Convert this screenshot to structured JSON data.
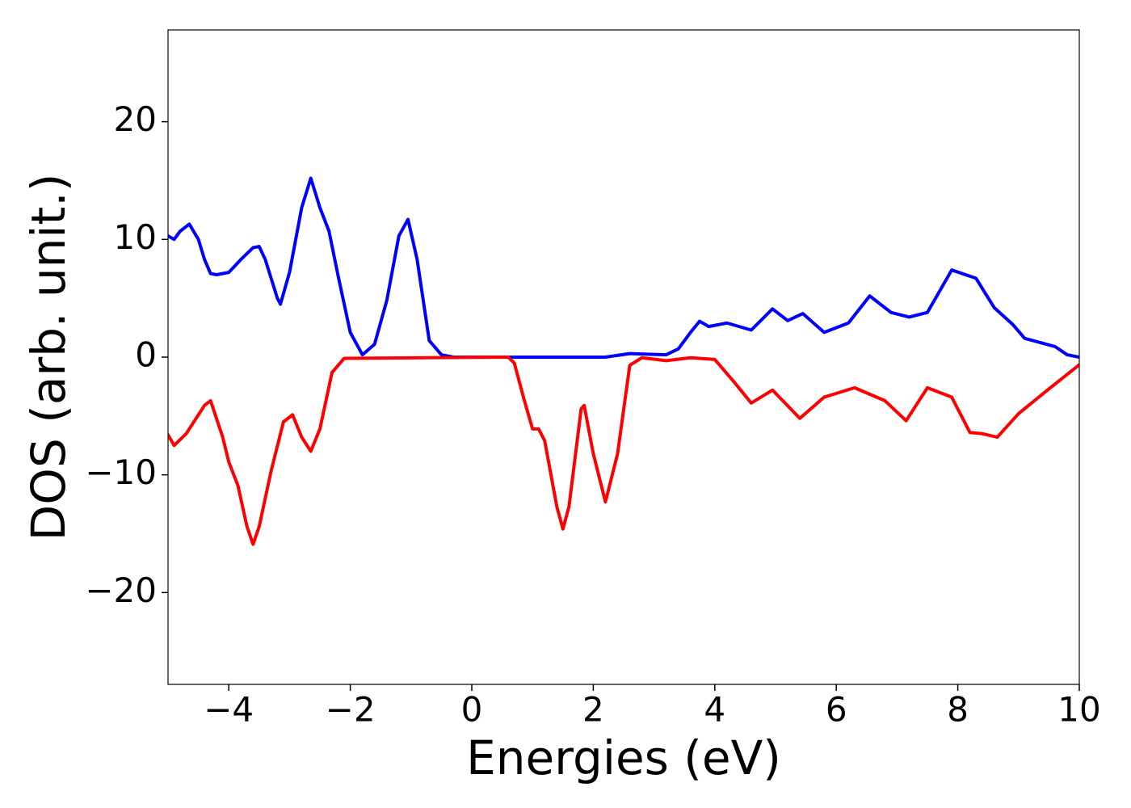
{
  "chart_data": {
    "type": "line",
    "xlabel": "Energies (eV)",
    "ylabel": "DOS (arb. unit.)",
    "xlim": [
      -5,
      10
    ],
    "ylim": [
      -27.8,
      27.8
    ],
    "xticks": [
      {
        "value": -4,
        "label": "−4"
      },
      {
        "value": -2,
        "label": "−2"
      },
      0,
      2,
      4,
      6,
      8,
      10
    ],
    "yticks": [
      {
        "value": -20,
        "label": "−20"
      },
      {
        "value": -10,
        "label": "−10"
      },
      0,
      10,
      20
    ],
    "grid": false,
    "series": [
      {
        "color": "#0000ff",
        "x": [
          -5,
          -4.9,
          -4.8,
          -4.65,
          -4.5,
          -4.4,
          -4.3,
          -4.2,
          -4.0,
          -3.8,
          -3.6,
          -3.5,
          -3.4,
          -3.2,
          -3.15,
          -3.0,
          -2.8,
          -2.65,
          -2.5,
          -2.35,
          -2.2,
          -2.0,
          -1.8,
          -1.6,
          -1.4,
          -1.2,
          -1.05,
          -0.9,
          -0.7,
          -0.5,
          -0.3,
          2.2,
          2.6,
          3.2,
          3.4,
          3.6,
          3.75,
          3.9,
          4.2,
          4.6,
          4.95,
          5.2,
          5.45,
          5.8,
          6.2,
          6.55,
          6.9,
          7.2,
          7.5,
          7.9,
          8.3,
          8.6,
          8.9,
          9.1,
          9.6,
          9.8,
          10
        ],
        "values": [
          10.3,
          10.0,
          10.7,
          11.3,
          10.0,
          8.3,
          7.1,
          7.0,
          7.2,
          8.3,
          9.3,
          9.4,
          8.3,
          5.0,
          4.5,
          7.2,
          12.7,
          15.2,
          12.7,
          10.7,
          6.9,
          2.1,
          0.2,
          1.1,
          4.8,
          10.3,
          11.7,
          8.3,
          1.4,
          0.2,
          0,
          0,
          0.3,
          0.2,
          0.7,
          2.1,
          3.05,
          2.6,
          2.9,
          2.3,
          4.1,
          3.1,
          3.7,
          2.1,
          2.9,
          5.2,
          3.8,
          3.4,
          3.8,
          7.4,
          6.7,
          4.2,
          2.8,
          1.6,
          0.9,
          0.2,
          0
        ]
      },
      {
        "color": "#ff0000",
        "x": [
          -5,
          -4.9,
          -4.7,
          -4.4,
          -4.3,
          -4.1,
          -4.0,
          -3.85,
          -3.7,
          -3.6,
          -3.5,
          -3.3,
          -3.1,
          -2.95,
          -2.8,
          -2.65,
          -2.5,
          -2.3,
          -2.1,
          0.6,
          0.7,
          0.85,
          1.0,
          1.1,
          1.2,
          1.4,
          1.5,
          1.6,
          1.8,
          1.85,
          2.0,
          2.2,
          2.4,
          2.6,
          2.8,
          3.2,
          3.6,
          4.0,
          4.3,
          4.6,
          4.95,
          5.4,
          5.8,
          6.3,
          6.8,
          7.15,
          7.5,
          7.9,
          8.2,
          8.4,
          8.65,
          9.0,
          9.5,
          10
        ],
        "values": [
          -6.6,
          -7.5,
          -6.5,
          -4.1,
          -3.7,
          -6.8,
          -8.9,
          -10.9,
          -14.4,
          -15.9,
          -14.4,
          -9.6,
          -5.5,
          -4.9,
          -6.8,
          -8.0,
          -6.1,
          -1.3,
          -0.1,
          0,
          -0.5,
          -3.4,
          -6.1,
          -6.1,
          -7.1,
          -12.7,
          -14.6,
          -12.7,
          -4.4,
          -4.1,
          -8.2,
          -12.3,
          -8.2,
          -0.7,
          -0.05,
          -0.3,
          -0.05,
          -0.2,
          -2.0,
          -3.9,
          -2.8,
          -5.2,
          -3.4,
          -2.6,
          -3.7,
          -5.4,
          -2.6,
          -3.4,
          -6.4,
          -6.5,
          -6.8,
          -4.8,
          -2.7,
          -0.65
        ]
      }
    ]
  }
}
